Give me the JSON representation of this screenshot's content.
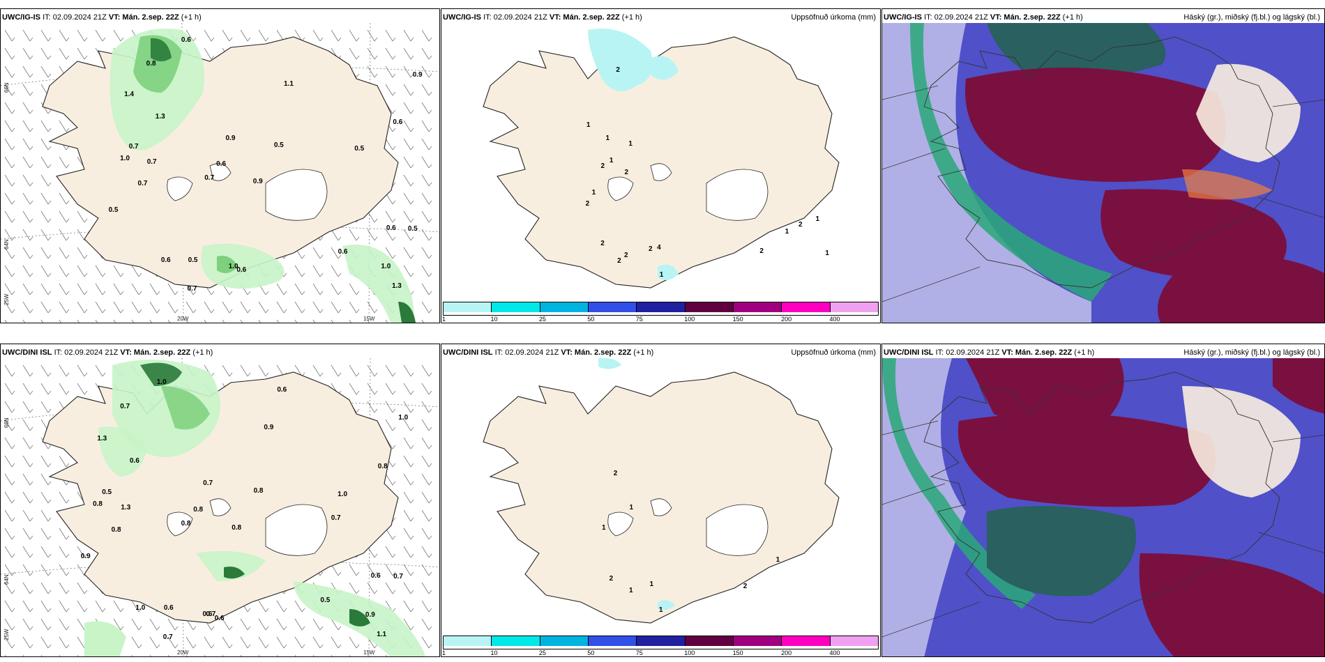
{
  "panels": {
    "top_left": {
      "model": "UWC/IG-IS",
      "it": "IT: 02.09.2024 21Z",
      "vt": "VT: Mán. 2.sep. 22Z",
      "lead": "(+1 h)"
    },
    "top_mid": {
      "model": "UWC/IG-IS",
      "it": "IT: 02.09.2024 21Z",
      "vt": "VT: Mán. 2.sep. 22Z",
      "lead": "(+1 h)",
      "right": "Uppsöfnuð úrkoma (mm)"
    },
    "top_right": {
      "model": "UWC/IG-IS",
      "it": "IT: 02.09.2024 21Z",
      "vt": "VT: Mán. 2.sep. 22Z",
      "lead": "(+1 h)",
      "right": "Háský (gr.), miðský (fj.bl.) og lágský (bl.)"
    },
    "bot_left": {
      "model": "UWC/DINI ISL",
      "it": "IT: 02.09.2024 21Z",
      "vt": "VT: Mán. 2.sep. 22Z",
      "lead": "(+1 h)"
    },
    "bot_mid": {
      "model": "UWC/DINI ISL",
      "it": "IT: 02.09.2024 21Z",
      "vt": "VT: Mán. 2.sep. 22Z",
      "lead": "(+1 h)",
      "right": "Uppsöfnuð úrkoma (mm)"
    },
    "bot_right": {
      "model": "UWC/DINI ISL",
      "it": "IT: 02.09.2024 21Z",
      "vt": "VT: Mán. 2.sep. 22Z",
      "lead": "(+1 h)",
      "right": "Háský (gr.), miðský (fj.bl.) og lágský (bl.)"
    }
  },
  "axes": {
    "lat1": "66N",
    "lat2": "64N",
    "lat3": "25W",
    "lon1": "20W",
    "lon2": "15W"
  },
  "colorbar": {
    "ticks": [
      "1",
      "10",
      "25",
      "50",
      "75",
      "100",
      "150",
      "200",
      "400"
    ],
    "colors": [
      "#b8f4f4",
      "#00e8e8",
      "#00b4e0",
      "#3050e8",
      "#2020a0",
      "#600040",
      "#a00080",
      "#ff00c0",
      "#f0a0f0"
    ]
  },
  "labels_top_left": [
    "0.6",
    "0.9",
    "1.3",
    "1.0",
    "0.8",
    "0.6",
    "0.5",
    "0.9",
    "0.7",
    "0.5",
    "0.5",
    "0.6",
    "0.6",
    "0.7",
    "0.5",
    "0.6",
    "0.9",
    "1.0",
    "0.7",
    "1.4",
    "0.5",
    "0.6",
    "0.6",
    "0.7",
    "0.7",
    "1.0",
    "1.1",
    "1.3"
  ],
  "labels_top_mid": [
    "2",
    "2",
    "2",
    "2",
    "2",
    "2",
    "1",
    "1",
    "1",
    "1",
    "2",
    "1",
    "1",
    "1",
    "2",
    "1",
    "4",
    "1",
    "2",
    "2"
  ],
  "labels_bot_left": [
    "0.5",
    "0.7",
    "1.1",
    "0.8",
    "0.7",
    "0.8",
    "0.9",
    "1.0",
    "1.3",
    "0.7",
    "0.6",
    "0.6",
    "1.0",
    "0.8",
    "0.8",
    "1.0",
    "0.8",
    "0.7",
    "0.8",
    "1.3",
    "1.0",
    "0.8",
    "0.6",
    "0.5",
    "0.7",
    "0.9",
    "0.9",
    "0.6",
    "0.7",
    "0.6",
    "0.6"
  ],
  "labels_bot_mid": [
    "1",
    "1",
    "2",
    "2",
    "1",
    "1",
    "1",
    "1",
    "2"
  ],
  "colors": {
    "land": "#f8eee0",
    "precip_light": "#c8f4c8",
    "precip_mid": "#7ed07e",
    "precip_dark": "#2a7a3a",
    "high_cloud": "#2aa878",
    "mid_cloud": "#7a1040",
    "low_cloud": "#5050c8"
  }
}
